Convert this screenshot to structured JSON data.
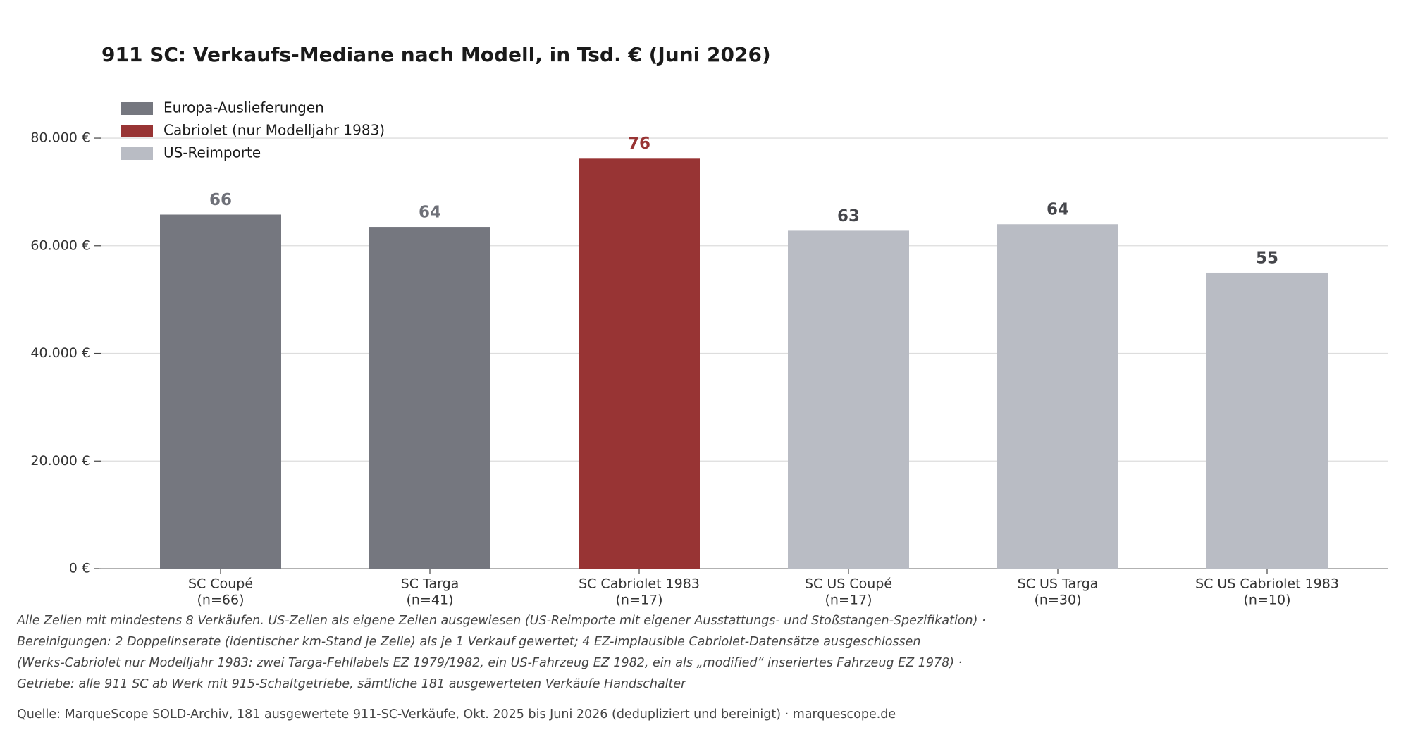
{
  "chart_data": {
    "type": "bar",
    "title": "911 SC: Verkaufs-Mediane nach Modell, in Tsd. € (Juni 2026)",
    "categories": [
      [
        "SC Coupé",
        "(n=66)"
      ],
      [
        "SC Targa",
        "(n=41)"
      ],
      [
        "SC Cabriolet 1983",
        "(n=17)"
      ],
      [
        "SC US Coupé",
        "(n=17)"
      ],
      [
        "SC US Targa",
        "(n=30)"
      ],
      [
        "SC US Cabriolet 1983",
        "(n=10)"
      ]
    ],
    "series": [
      {
        "name": "Europa-Auslieferungen",
        "color": "#75777f",
        "label_color": "#6e7078",
        "values": [
          65800,
          63500,
          null,
          null,
          null,
          null
        ],
        "value_labels": [
          "66",
          "64",
          null,
          null,
          null,
          null
        ]
      },
      {
        "name": "Cabriolet (nur Modelljahr 1983)",
        "color": "#983434",
        "label_color": "#983434",
        "values": [
          null,
          null,
          76300,
          null,
          null,
          null
        ],
        "value_labels": [
          null,
          null,
          "76",
          null,
          null,
          null
        ]
      },
      {
        "name": "US-Reimporte",
        "color": "#b9bcc4",
        "label_color": "#45464b",
        "values": [
          null,
          null,
          null,
          62800,
          64000,
          55000
        ],
        "value_labels": [
          null,
          null,
          null,
          "63",
          "64",
          "55"
        ]
      }
    ],
    "ylim": [
      0,
      84000
    ],
    "yticks": [
      {
        "value": 0,
        "label": "0 €"
      },
      {
        "value": 20000,
        "label": "20.000 €"
      },
      {
        "value": 40000,
        "label": "40.000 €"
      },
      {
        "value": 60000,
        "label": "60.000 €"
      },
      {
        "value": 80000,
        "label": "80.000 €"
      }
    ],
    "grid": true,
    "legend": "upper-left",
    "notes": [
      "Alle Zellen mit mindestens 8 Verkäufen. US-Zellen als eigene Zeilen ausgewiesen (US-Reimporte mit eigener Ausstattungs- und Stoßstangen-Spezifikation) ·",
      "Bereinigungen: 2 Doppelinserate (identischer km-Stand je Zelle) als je 1 Verkauf gewertet; 4 EZ-implausible Cabriolet-Datensätze ausgeschlossen",
      "(Werks-Cabriolet nur Modelljahr 1983: zwei Targa-Fehllabels EZ 1979/1982, ein US-Fahrzeug EZ 1982, ein als „modified“ inseriertes Fahrzeug EZ 1978) ·",
      "Getriebe: alle 911 SC ab Werk mit 915-Schaltgetriebe, sämtliche 181 ausgewerteten Verkäufe Handschalter"
    ],
    "source": "Quelle: MarqueScope SOLD-Archiv, 181 ausgewertete 911-SC-Verkäufe, Okt. 2025 bis Juni 2026 (dedupliziert und bereinigt) · marquescope.de"
  }
}
